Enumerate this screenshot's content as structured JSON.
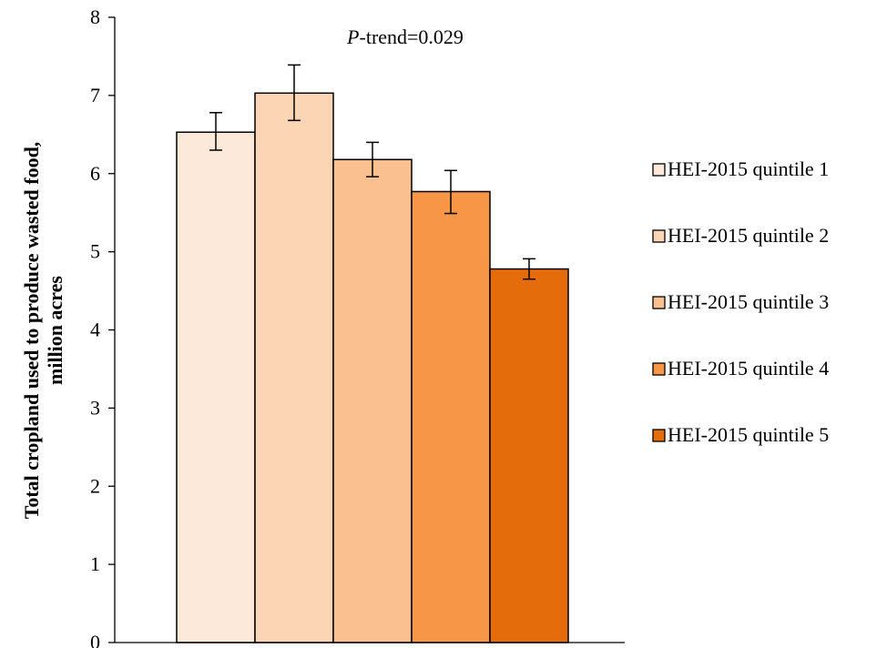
{
  "chart_data": {
    "type": "bar",
    "categories": [
      "HEI-2015 quintile 1",
      "HEI-2015 quintile 2",
      "HEI-2015 quintile 3",
      "HEI-2015 quintile 4",
      "HEI-2015 quintile 5"
    ],
    "series": [
      {
        "name": "HEI-2015 quintile 1",
        "value": 6.53,
        "err_low": 6.3,
        "err_high": 6.78,
        "color": "#fde9d9"
      },
      {
        "name": "HEI-2015 quintile 2",
        "value": 7.03,
        "err_low": 6.68,
        "err_high": 7.39,
        "color": "#fcd5b4"
      },
      {
        "name": "HEI-2015 quintile 3",
        "value": 6.18,
        "err_low": 5.96,
        "err_high": 6.4,
        "color": "#fac090"
      },
      {
        "name": "HEI-2015 quintile 4",
        "value": 5.77,
        "err_low": 5.49,
        "err_high": 6.04,
        "color": "#f79646"
      },
      {
        "name": "HEI-2015 quintile 5",
        "value": 4.78,
        "err_low": 4.65,
        "err_high": 4.91,
        "color": "#e46c0a"
      }
    ],
    "ylabel_line1": "Total cropland used to produce wasted food,",
    "ylabel_line2": "million acres",
    "annotation_italic": "P",
    "annotation_rest": "-trend=0.029",
    "ylim": [
      0,
      8
    ],
    "yticks": [
      "0",
      "1",
      "2",
      "3",
      "4",
      "5",
      "6",
      "7",
      "8"
    ],
    "grid": false,
    "legend_position": "right"
  }
}
